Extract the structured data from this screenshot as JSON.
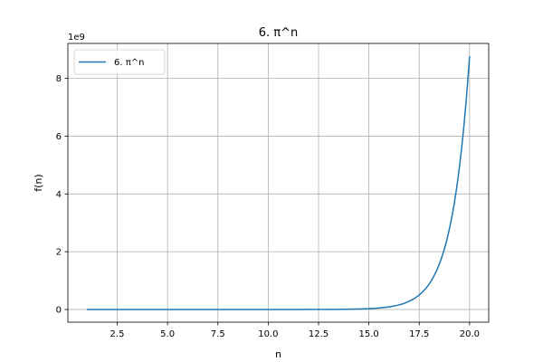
{
  "chart_data": {
    "type": "line",
    "title": "6. π^n",
    "xlabel": "n",
    "ylabel": "f(n)",
    "xlim": [
      0.05,
      20.95
    ],
    "ylim": [
      -0.44,
      9.21
    ],
    "y_offset_label": "1e9",
    "y_unit_multiplier": 1000000000,
    "grid": true,
    "legend": "top-left",
    "xticks": [
      2.5,
      5.0,
      7.5,
      10.0,
      12.5,
      15.0,
      17.5,
      20.0
    ],
    "xtick_labels": [
      "2.5",
      "5.0",
      "7.5",
      "10.0",
      "12.5",
      "15.0",
      "17.5",
      "20.0"
    ],
    "yticks": [
      0,
      2,
      4,
      6,
      8
    ],
    "ytick_labels": [
      "0",
      "2",
      "4",
      "6",
      "8"
    ],
    "series": [
      {
        "name": "6. π^n",
        "color": "#1f77b4",
        "function": "pi^n",
        "x_range": [
          1,
          20
        ],
        "points": 200
      }
    ]
  }
}
